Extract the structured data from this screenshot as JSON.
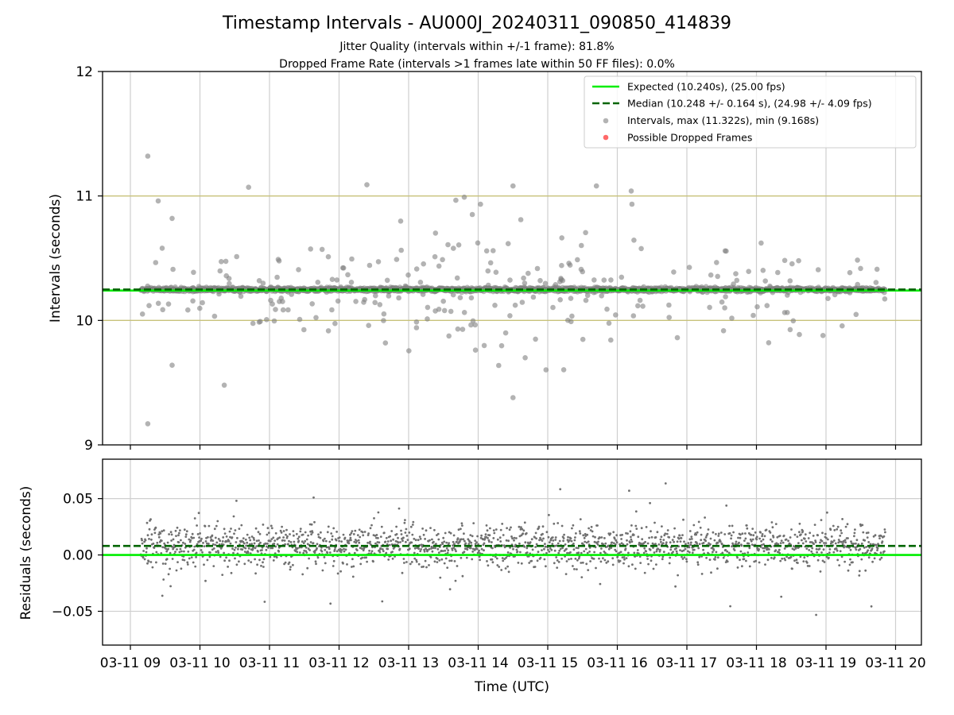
{
  "title": "Timestamp Intervals - AU000J_20240311_090850_414839",
  "subtitle1": "Jitter Quality (intervals within +/-1 frame): 81.8%",
  "subtitle2": "Dropped Frame Rate (intervals >1 frames late within 50 FF files): 0.0%",
  "chart_data": [
    {
      "type": "scatter",
      "panel": "intervals",
      "ylabel": "Intervals (seconds)",
      "ylim": [
        9,
        12
      ],
      "yticks": [
        "9",
        "10",
        "11",
        "12"
      ],
      "grid": "x",
      "reference_lines": {
        "expected": 10.24,
        "median": 10.248,
        "band_low": 10.0,
        "band_high": 11.0
      },
      "legend_position": "top-right",
      "legend": [
        {
          "label": "Expected (10.240s), (25.00 fps)",
          "kind": "solid-line",
          "color": "#00ee00"
        },
        {
          "label": "Median (10.248 +/- 0.164 s), (24.98 +/- 4.09 fps)",
          "kind": "dashed-line",
          "color": "#006400"
        },
        {
          "label": "Intervals, max (11.322s), min (9.168s)",
          "kind": "marker",
          "color": "#808080"
        },
        {
          "label": "Possible Dropped Frames",
          "kind": "marker",
          "color": "#ff4444"
        }
      ],
      "x_range_hours": [
        9.15,
        19.85
      ],
      "series": [
        {
          "name": "Intervals",
          "color": "#808080",
          "notable_points": [
            [
              9.25,
              11.32
            ],
            [
              9.25,
              9.17
            ],
            [
              9.4,
              10.96
            ],
            [
              9.6,
              10.82
            ],
            [
              10.7,
              11.07
            ],
            [
              12.4,
              11.09
            ],
            [
              13.8,
              10.99
            ],
            [
              14.5,
              11.08
            ],
            [
              15.7,
              11.08
            ],
            [
              16.2,
              11.04
            ],
            [
              14.5,
              9.38
            ],
            [
              9.6,
              9.64
            ],
            [
              10.35,
              9.48
            ]
          ]
        }
      ]
    },
    {
      "type": "scatter",
      "panel": "residuals",
      "ylabel": "Residuals (seconds)",
      "xlabel": "Time (UTC)",
      "ylim": [
        -0.08,
        0.085
      ],
      "yticks": [
        "−0.05",
        "0.00",
        "0.05"
      ],
      "grid": "both",
      "reference_lines": {
        "zero": 0.0,
        "median_offset": 0.008
      },
      "xticks": [
        "03-11 09",
        "03-11 10",
        "03-11 11",
        "03-11 12",
        "03-11 13",
        "03-11 14",
        "03-11 15",
        "03-11 16",
        "03-11 17",
        "03-11 18",
        "03-11 19",
        "03-11 20"
      ]
    }
  ]
}
